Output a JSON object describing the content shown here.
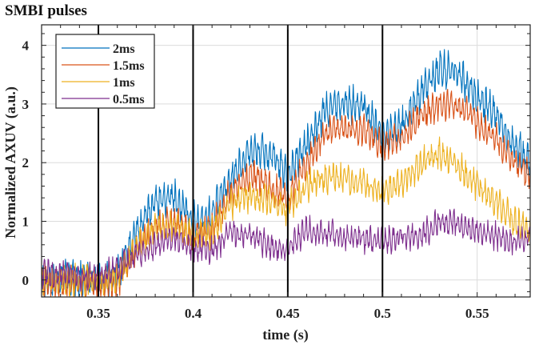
{
  "chart_data": {
    "type": "line",
    "title": "SMBI pulses",
    "xlabel": "time (s)",
    "ylabel": "Normalized AXUV (a.u.)",
    "xlim": [
      0.32,
      0.578
    ],
    "ylim": [
      -0.29,
      4.35
    ],
    "xticks": [
      0.35,
      0.4,
      0.45,
      0.5,
      0.55
    ],
    "xtick_labels": [
      "0.35",
      "0.4",
      "0.45",
      "0.5",
      "0.55"
    ],
    "yticks": [
      0,
      1,
      2,
      3,
      4
    ],
    "ytick_labels": [
      "0",
      "1",
      "2",
      "3",
      "4"
    ],
    "grid": true,
    "legend_position": "top-left",
    "vertical_markers": [
      0.35,
      0.4,
      0.45,
      0.5
    ],
    "series": [
      {
        "name": "2ms",
        "color": "#0072BD",
        "amplitude": 0.3,
        "x": [
          0.32,
          0.35,
          0.36,
          0.37,
          0.38,
          0.39,
          0.4,
          0.41,
          0.42,
          0.43,
          0.44,
          0.45,
          0.46,
          0.47,
          0.48,
          0.49,
          0.5,
          0.51,
          0.52,
          0.53,
          0.54,
          0.55,
          0.56,
          0.57,
          0.578
        ],
        "values": [
          0.0,
          0.0,
          0.05,
          0.8,
          1.35,
          1.4,
          1.0,
          1.1,
          1.75,
          2.2,
          2.15,
          1.8,
          2.3,
          2.9,
          3.0,
          2.95,
          2.5,
          2.6,
          3.2,
          3.6,
          3.5,
          3.1,
          2.8,
          2.3,
          2.0
        ]
      },
      {
        "name": "1.5ms",
        "color": "#D95319",
        "amplitude": 0.25,
        "x": [
          0.32,
          0.35,
          0.36,
          0.37,
          0.38,
          0.39,
          0.4,
          0.41,
          0.42,
          0.43,
          0.44,
          0.45,
          0.46,
          0.47,
          0.48,
          0.49,
          0.5,
          0.51,
          0.52,
          0.53,
          0.54,
          0.55,
          0.56,
          0.57,
          0.578
        ],
        "values": [
          -0.05,
          -0.05,
          -0.05,
          0.5,
          0.95,
          1.0,
          0.75,
          0.9,
          1.5,
          1.8,
          1.6,
          1.4,
          2.0,
          2.5,
          2.6,
          2.55,
          2.3,
          2.4,
          2.8,
          3.0,
          2.95,
          2.7,
          2.4,
          2.0,
          1.75
        ]
      },
      {
        "name": "1ms",
        "color": "#EDB120",
        "amplitude": 0.25,
        "x": [
          0.32,
          0.35,
          0.36,
          0.37,
          0.38,
          0.39,
          0.4,
          0.41,
          0.42,
          0.43,
          0.44,
          0.45,
          0.46,
          0.47,
          0.48,
          0.49,
          0.5,
          0.51,
          0.52,
          0.53,
          0.54,
          0.55,
          0.56,
          0.57,
          0.578
        ],
        "values": [
          0.0,
          0.0,
          0.05,
          0.55,
          0.85,
          0.9,
          0.75,
          0.8,
          1.3,
          1.45,
          1.35,
          1.2,
          1.6,
          1.75,
          1.7,
          1.65,
          1.5,
          1.65,
          2.0,
          2.15,
          1.95,
          1.6,
          1.3,
          1.0,
          0.85
        ]
      },
      {
        "name": "0.5ms",
        "color": "#7E2F8E",
        "amplitude": 0.22,
        "x": [
          0.32,
          0.35,
          0.36,
          0.37,
          0.38,
          0.39,
          0.4,
          0.41,
          0.42,
          0.43,
          0.44,
          0.45,
          0.46,
          0.47,
          0.48,
          0.49,
          0.5,
          0.51,
          0.52,
          0.53,
          0.54,
          0.55,
          0.56,
          0.57,
          0.578
        ],
        "values": [
          0.1,
          0.05,
          0.2,
          0.4,
          0.6,
          0.7,
          0.55,
          0.5,
          0.8,
          0.75,
          0.6,
          0.5,
          0.85,
          0.8,
          0.75,
          0.7,
          0.65,
          0.75,
          0.75,
          1.0,
          0.95,
          0.85,
          0.75,
          0.65,
          0.7
        ]
      }
    ]
  }
}
